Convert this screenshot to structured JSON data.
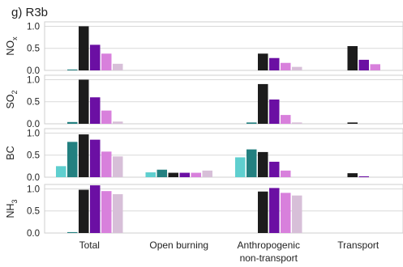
{
  "chart_data": {
    "type": "bar",
    "title": "g)  R3b",
    "categories": [
      "Total",
      "Open burning",
      "Anthropogenic",
      "Transport"
    ],
    "category_labels": [
      [
        "Total"
      ],
      [
        "Open burning"
      ],
      [
        "Anthropogenic",
        "non-transport"
      ],
      [
        "Transport"
      ]
    ],
    "bar_colors": [
      "#5fcfcf",
      "#238080",
      "#1c1c1c",
      "#6b0fa3",
      "#d880dc",
      "#d7bfd8"
    ],
    "grid": true,
    "legend": "none",
    "panels": [
      {
        "ylabel_main": "NO",
        "ylabel_sub": "x",
        "ylim": [
          0,
          1.1
        ],
        "yticks": [
          "0.0",
          "0.5",
          "1.0"
        ],
        "values": [
          [
            0.0,
            0.02,
            1.0,
            0.58,
            0.38,
            0.15
          ],
          [
            0.0,
            0.0,
            0.0,
            0.0,
            0.0,
            0.0
          ],
          [
            0.0,
            0.0,
            0.38,
            0.28,
            0.17,
            0.08
          ],
          [
            0.0,
            0.0,
            0.55,
            0.24,
            0.14,
            0.0
          ]
        ]
      },
      {
        "ylabel_main": "SO",
        "ylabel_sub": "2",
        "ylim": [
          0,
          1.1
        ],
        "yticks": [
          "0.0",
          "0.5",
          "1.0"
        ],
        "values": [
          [
            0.0,
            0.04,
            1.0,
            0.6,
            0.3,
            0.05
          ],
          [
            0.0,
            0.0,
            0.0,
            0.0,
            0.0,
            0.0
          ],
          [
            0.0,
            0.03,
            0.9,
            0.55,
            0.2,
            0.03
          ],
          [
            0.0,
            0.0,
            0.03,
            0.0,
            0.0,
            0.0
          ]
        ]
      },
      {
        "ylabel_main": "BC",
        "ylabel_sub": "",
        "ylim": [
          0,
          1.1
        ],
        "yticks": [
          "0.0",
          "0.5",
          "1.0"
        ],
        "values": [
          [
            0.25,
            0.8,
            0.97,
            0.85,
            0.58,
            0.47
          ],
          [
            0.11,
            0.17,
            0.1,
            0.1,
            0.1,
            0.15
          ],
          [
            0.45,
            0.63,
            0.57,
            0.35,
            0.15,
            0.0
          ],
          [
            0.0,
            0.0,
            0.09,
            0.02,
            0.0,
            0.0
          ]
        ]
      },
      {
        "ylabel_main": "NH",
        "ylabel_sub": "3",
        "ylim": [
          0,
          1.1
        ],
        "yticks": [
          "0.0",
          "0.5",
          "1.0"
        ],
        "values": [
          [
            0.0,
            0.02,
            0.98,
            1.08,
            0.95,
            0.88
          ],
          [
            0.0,
            0.0,
            0.0,
            0.0,
            0.0,
            0.0
          ],
          [
            0.0,
            0.0,
            0.94,
            1.02,
            0.91,
            0.85
          ],
          [
            0.0,
            0.0,
            0.0,
            0.0,
            0.0,
            0.0
          ]
        ]
      }
    ]
  }
}
